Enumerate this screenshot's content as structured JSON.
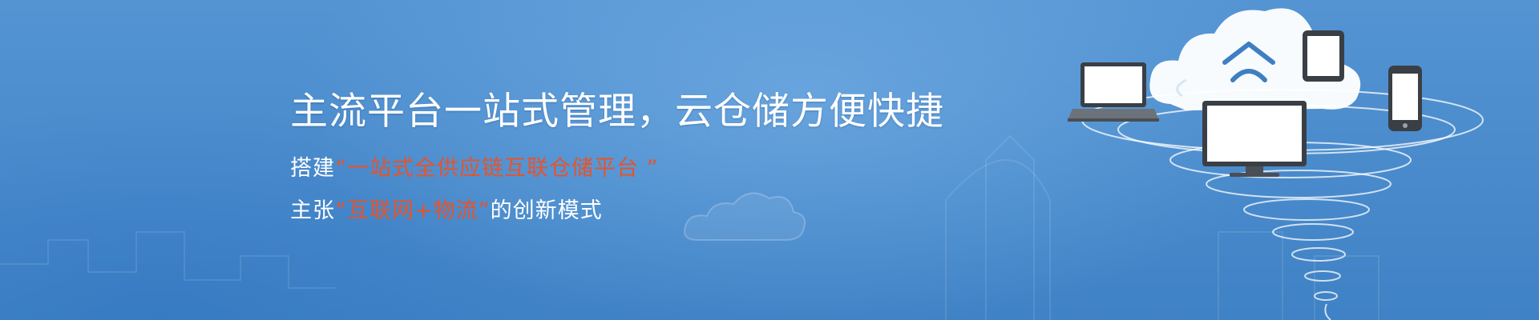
{
  "banner": {
    "headline": "主流平台一站式管理，云仓储方便快捷",
    "line1": {
      "prefix": "搭建",
      "highlight": "“一站式全供应链互联仓储平台 ”"
    },
    "line2": {
      "prefix": "主张",
      "highlight": "“互联网+物流”",
      "suffix": "的创新模式"
    }
  },
  "colors": {
    "background": "#4b8ccd",
    "text": "#ffffff",
    "accent": "#e5542c"
  },
  "icons": [
    "cloud-icon",
    "laptop-icon",
    "monitor-icon",
    "tablet-icon",
    "phone-icon",
    "roof-logo-icon",
    "tornado-swirl"
  ]
}
